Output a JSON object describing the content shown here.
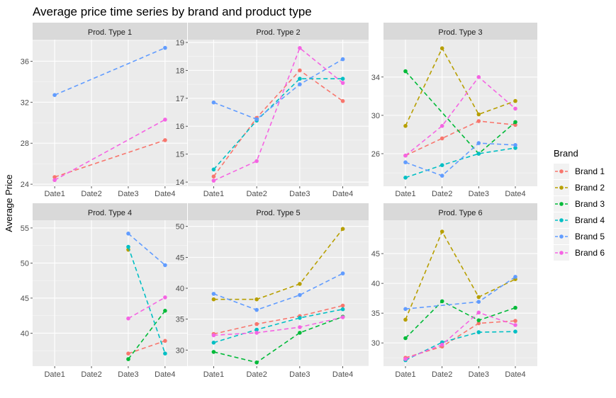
{
  "chart_data": {
    "type": "line",
    "title": "Average price time series by brand and product type",
    "ylabel": "Average Price",
    "xlabel": "",
    "x": [
      "Date1",
      "Date2",
      "Date3",
      "Date4"
    ],
    "legend": {
      "title": "Brand",
      "placement": "right",
      "entries": [
        "Brand 1",
        "Brand 2",
        "Brand 3",
        "Brand 4",
        "Brand 5",
        "Brand 6"
      ]
    },
    "colors": {
      "Brand 1": "#F8766D",
      "Brand 2": "#B79F00",
      "Brand 3": "#00BA38",
      "Brand 4": "#00BFC4",
      "Brand 5": "#619CFF",
      "Brand 6": "#F564E3"
    },
    "line_style": "dashed",
    "grid": true,
    "facets": [
      {
        "label": "Prod. Type 1",
        "ylim": [
          23.8,
          38.1
        ],
        "yticks": [
          24,
          28,
          32,
          36
        ],
        "series": [
          {
            "name": "Brand 1",
            "values": [
              24.7,
              null,
              null,
              28.3
            ]
          },
          {
            "name": "Brand 5",
            "values": [
              32.7,
              null,
              null,
              37.3
            ]
          },
          {
            "name": "Brand 6",
            "values": [
              24.4,
              null,
              null,
              30.3
            ]
          }
        ]
      },
      {
        "label": "Prod. Type 2",
        "ylim": [
          13.85,
          19.1
        ],
        "yticks": [
          14,
          15,
          16,
          17,
          18,
          19
        ],
        "series": [
          {
            "name": "Brand 1",
            "values": [
              14.2,
              16.3,
              18.0,
              16.9
            ]
          },
          {
            "name": "Brand 4",
            "values": [
              14.45,
              16.2,
              17.7,
              17.7
            ]
          },
          {
            "name": "Brand 5",
            "values": [
              16.85,
              16.25,
              17.5,
              18.4
            ]
          },
          {
            "name": "Brand 6",
            "values": [
              14.05,
              14.75,
              18.8,
              17.55
            ]
          }
        ]
      },
      {
        "label": "Prod. Type 3",
        "ylim": [
          22.6,
          37.9
        ],
        "yticks": [
          26,
          30,
          34
        ],
        "series": [
          {
            "name": "Brand 1",
            "values": [
              25.8,
              27.6,
              29.4,
              29.0
            ]
          },
          {
            "name": "Brand 2",
            "values": [
              28.9,
              37.0,
              30.1,
              31.5
            ]
          },
          {
            "name": "Brand 3",
            "values": [
              34.6,
              null,
              26.0,
              29.3
            ]
          },
          {
            "name": "Brand 4",
            "values": [
              23.5,
              24.8,
              26.0,
              26.6
            ]
          },
          {
            "name": "Brand 5",
            "values": [
              25.1,
              23.7,
              27.1,
              26.9
            ]
          },
          {
            "name": "Brand 6",
            "values": [
              25.8,
              28.9,
              34.0,
              30.7
            ]
          }
        ]
      },
      {
        "label": "Prod. Type 4",
        "ylim": [
          35.3,
          56.1
        ],
        "yticks": [
          40,
          45,
          50,
          55
        ],
        "series": [
          {
            "name": "Brand 1",
            "values": [
              null,
              null,
              37.1,
              38.9
            ]
          },
          {
            "name": "Brand 2",
            "values": [
              null,
              null,
              51.9,
              null
            ]
          },
          {
            "name": "Brand 3",
            "values": [
              null,
              null,
              36.3,
              43.2
            ]
          },
          {
            "name": "Brand 4",
            "values": [
              null,
              null,
              52.3,
              37.1
            ]
          },
          {
            "name": "Brand 5",
            "values": [
              null,
              null,
              54.2,
              49.7
            ]
          },
          {
            "name": "Brand 6",
            "values": [
              null,
              null,
              42.1,
              45.1
            ]
          }
        ]
      },
      {
        "label": "Prod. Type 5",
        "ylim": [
          27.4,
          51.0
        ],
        "yticks": [
          30,
          35,
          40,
          45,
          50
        ],
        "series": [
          {
            "name": "Brand 1",
            "values": [
              32.6,
              34.2,
              35.5,
              37.2
            ]
          },
          {
            "name": "Brand 2",
            "values": [
              38.2,
              38.2,
              40.7,
              49.6
            ]
          },
          {
            "name": "Brand 3",
            "values": [
              29.7,
              28.0,
              32.8,
              35.4
            ]
          },
          {
            "name": "Brand 4",
            "values": [
              31.2,
              33.3,
              35.2,
              36.6
            ]
          },
          {
            "name": "Brand 5",
            "values": [
              39.1,
              36.5,
              38.9,
              42.4
            ]
          },
          {
            "name": "Brand 6",
            "values": [
              32.4,
              32.8,
              33.7,
              35.3
            ]
          }
        ]
      },
      {
        "label": "Prod. Type 6",
        "ylim": [
          26.1,
          50.6
        ],
        "yticks": [
          30,
          35,
          40,
          45
        ],
        "series": [
          {
            "name": "Brand 1",
            "values": [
              27.5,
              29.4,
              33.3,
              33.7
            ]
          },
          {
            "name": "Brand 2",
            "values": [
              33.9,
              48.7,
              37.7,
              40.7
            ]
          },
          {
            "name": "Brand 3",
            "values": [
              30.8,
              37.0,
              33.8,
              35.9
            ]
          },
          {
            "name": "Brand 4",
            "values": [
              27.1,
              30.1,
              31.8,
              31.9
            ]
          },
          {
            "name": "Brand 5",
            "values": [
              35.7,
              null,
              36.9,
              41.1
            ]
          },
          {
            "name": "Brand 6",
            "values": [
              27.3,
              29.7,
              35.1,
              33.0
            ]
          }
        ]
      }
    ]
  }
}
